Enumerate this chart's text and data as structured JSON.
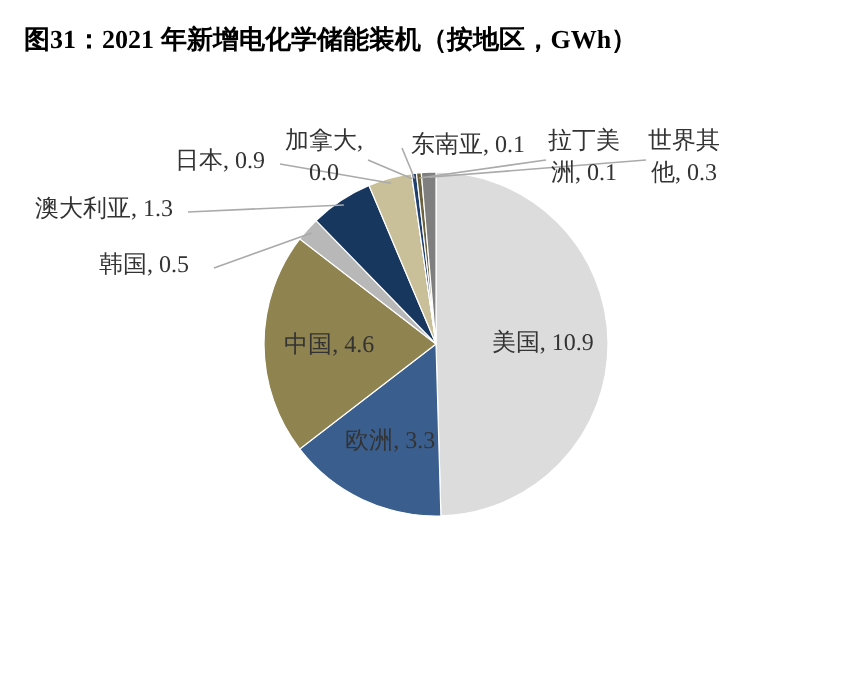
{
  "chart_data": {
    "type": "pie",
    "title": "图31：2021 年新增电化学储能装机（按地区，GWh）",
    "categories": [
      "美国",
      "欧洲",
      "中国",
      "韩国",
      "澳大利亚",
      "日本",
      "加拿大",
      "东南亚",
      "拉丁美洲",
      "世界其他"
    ],
    "values": [
      10.9,
      3.3,
      4.6,
      0.5,
      1.3,
      0.9,
      0.0,
      0.1,
      0.1,
      0.3
    ],
    "value_labels": [
      "10.9",
      "3.3",
      "4.6",
      "0.5",
      "1.3",
      "0.9",
      "0.0",
      "0.1",
      "0.1",
      "0.3"
    ],
    "colors": [
      "#dcdcdc",
      "#3a5f8f",
      "#8f8350",
      "#b8b8b8",
      "#17375e",
      "#c9c09a",
      "#2f4a6f",
      "#1f3f6f",
      "#6b6240",
      "#7f7f7f"
    ]
  }
}
